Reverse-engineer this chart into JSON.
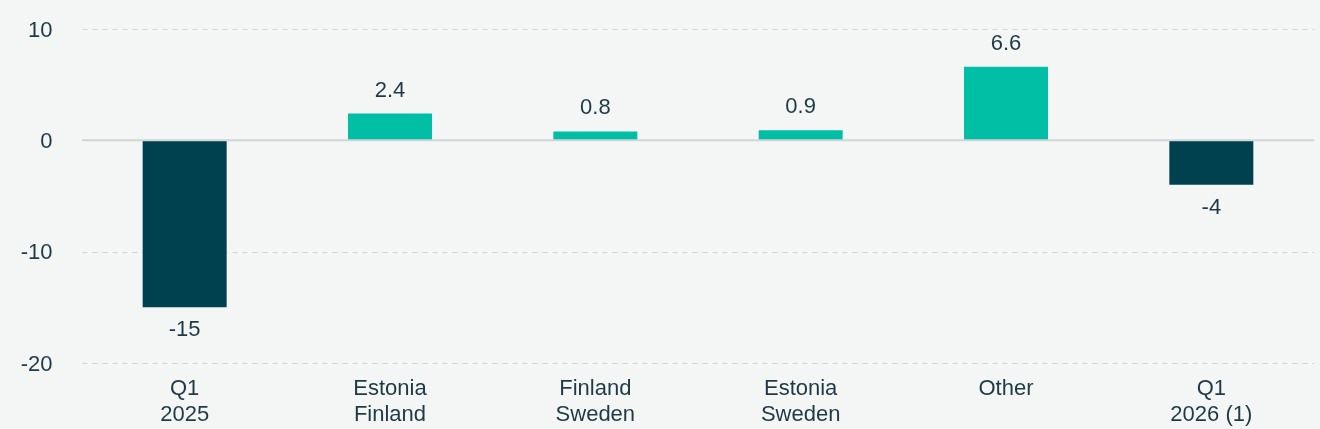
{
  "chart_data": {
    "type": "bar",
    "categories": [
      "Q1\n2025",
      "Estonia\nFinland",
      "Finland\nSweden",
      "Estonia\nSweden",
      "Other",
      "Q1\n2026 (1)"
    ],
    "values": [
      -15,
      2.4,
      0.8,
      0.9,
      6.6,
      -4
    ],
    "colors": [
      "#00414f",
      "#00bfa5",
      "#00bfa5",
      "#00bfa5",
      "#00bfa5",
      "#00414f"
    ],
    "ylim": [
      -20,
      10
    ],
    "yticks": [
      -20,
      -10,
      0,
      10
    ],
    "grid": "y",
    "data_labels": true,
    "ref_lines": [
      {
        "axis": "y",
        "value": 0,
        "color": "#d0d5d6",
        "line_style": "solid"
      }
    ]
  }
}
